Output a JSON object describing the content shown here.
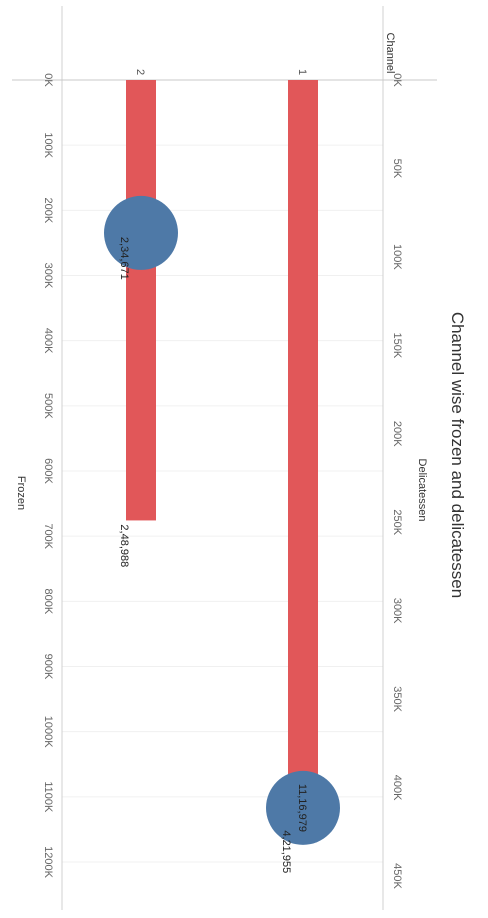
{
  "chart_data": {
    "type": "bar",
    "title": "Channel wise frozen and delicatessen",
    "category_axis_title": "Channel",
    "categories": [
      "1",
      "2"
    ],
    "series": [
      {
        "name": "Delicatessen",
        "mark": "bar",
        "axis": "Delicatessen",
        "values": [
          421955,
          248988
        ],
        "labels": [
          "4,21,955",
          "2,48,988"
        ],
        "color": "#E15759"
      },
      {
        "name": "Frozen",
        "mark": "circle",
        "axis": "Frozen",
        "values": [
          1116979,
          234671
        ],
        "labels": [
          "11,16,979",
          "2,34,671"
        ],
        "color": "#4E79A7"
      }
    ],
    "axes": {
      "delicatessen": {
        "title": "Delicatessen",
        "range": [
          0,
          450000
        ],
        "ticks": [
          0,
          50000,
          100000,
          150000,
          200000,
          250000,
          300000,
          350000,
          400000,
          450000
        ],
        "tick_labels": [
          "0K",
          "50K",
          "100K",
          "150K",
          "200K",
          "250K",
          "300K",
          "350K",
          "400K",
          "450K"
        ]
      },
      "frozen": {
        "title": "Frozen",
        "range": [
          0,
          1200000
        ],
        "ticks": [
          0,
          100000,
          200000,
          300000,
          400000,
          500000,
          600000,
          700000,
          800000,
          900000,
          1000000,
          1100000,
          1200000
        ],
        "tick_labels": [
          "0K",
          "100K",
          "200K",
          "300K",
          "400K",
          "500K",
          "600K",
          "700K",
          "800K",
          "900K",
          "1000K",
          "1100K",
          "1200K"
        ]
      }
    },
    "grid": true,
    "orientation": "rotated-90"
  }
}
